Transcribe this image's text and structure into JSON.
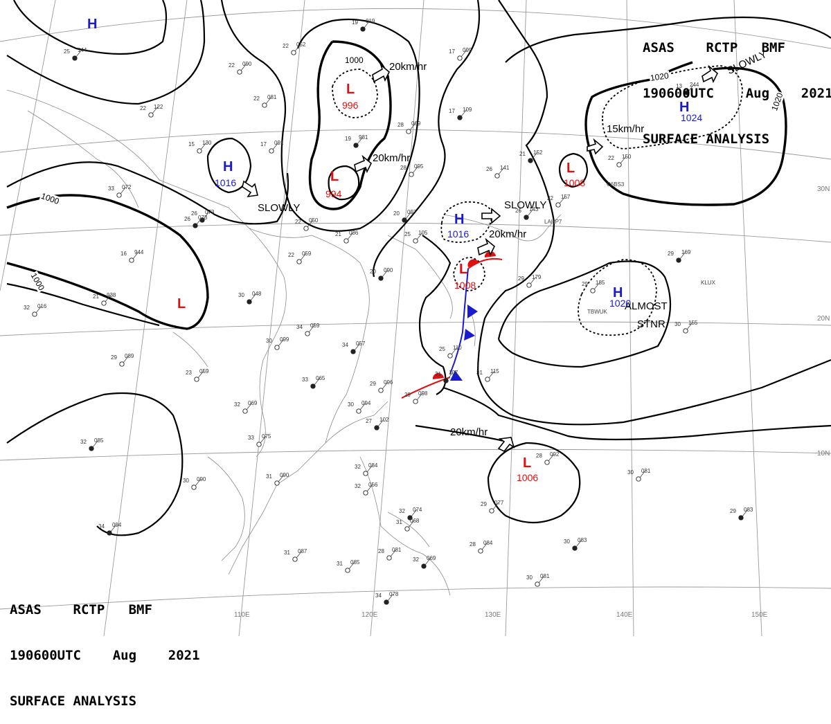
{
  "header": {
    "line1": "ASAS    RCTP   BMF",
    "line2": "190600UTC    Aug    2021",
    "line3": "SURFACE ANALYSIS"
  },
  "lat_labels": [
    "30N",
    "20N",
    "10N"
  ],
  "lon_labels": [
    "110E",
    "120E",
    "130E",
    "140E",
    "150E"
  ],
  "isobar_labels": [
    "1000",
    "1000",
    "1000",
    "1020",
    "1020"
  ],
  "systems": [
    {
      "type": "H",
      "pressure": "",
      "color": "#1a1ad0"
    },
    {
      "type": "L",
      "pressure": "996",
      "color": "#e01010"
    },
    {
      "type": "L",
      "pressure": "994",
      "color": "#e01010"
    },
    {
      "type": "H",
      "pressure": "1016",
      "color": "#1a1ad0"
    },
    {
      "type": "L",
      "pressure": "",
      "color": "#e01010"
    },
    {
      "type": "H",
      "pressure": "1016",
      "color": "#1a1ad0"
    },
    {
      "type": "L",
      "pressure": "1008",
      "color": "#e01010"
    },
    {
      "type": "L",
      "pressure": "1008",
      "color": "#e01010"
    },
    {
      "type": "H",
      "pressure": "1024",
      "color": "#1a1ad0"
    },
    {
      "type": "H",
      "pressure": "1020",
      "color": "#1a1ad0"
    },
    {
      "type": "L",
      "pressure": "1006",
      "color": "#e01010"
    }
  ],
  "motion_labels": [
    "20km/hr",
    "20km/hr",
    "SLOWLY",
    "SLOWLY",
    "20km/hr",
    "15km/hr",
    "SLOWLY",
    "ALMOST",
    "STNR",
    "20km/hr"
  ],
  "stations": [
    {
      "temp": "25",
      "press": "144"
    },
    {
      "temp": "22",
      "press": "090"
    },
    {
      "temp": "22",
      "press": "052"
    },
    {
      "temp": "19",
      "press": "019"
    },
    {
      "temp": "22",
      "press": "081"
    },
    {
      "temp": "22",
      "press": "122"
    },
    {
      "temp": "26",
      "press": "073"
    },
    {
      "temp": "15",
      "press": "130"
    },
    {
      "temp": "17",
      "press": "091"
    },
    {
      "temp": "19",
      "press": "981"
    },
    {
      "temp": "28",
      "press": "069"
    },
    {
      "temp": "17",
      "press": "099"
    },
    {
      "temp": "17",
      "press": "109"
    },
    {
      "temp": "28",
      "press": "095"
    },
    {
      "temp": "33",
      "press": "072"
    },
    {
      "temp": "26",
      "press": "073"
    },
    {
      "temp": "22",
      "press": "050"
    },
    {
      "temp": "21",
      "press": "086"
    },
    {
      "temp": "20",
      "press": "097"
    },
    {
      "temp": "16",
      "press": "944"
    },
    {
      "temp": "22",
      "press": "059"
    },
    {
      "temp": "20",
      "press": "090"
    },
    {
      "temp": "21",
      "press": "938"
    },
    {
      "temp": "32",
      "press": "016"
    },
    {
      "temp": "30",
      "press": "048"
    },
    {
      "temp": "34",
      "press": "059"
    },
    {
      "temp": "30",
      "press": "099"
    },
    {
      "temp": "34",
      "press": "057"
    },
    {
      "temp": "29",
      "press": "089"
    },
    {
      "temp": "23",
      "press": "059"
    },
    {
      "temp": "33",
      "press": "065"
    },
    {
      "temp": "29",
      "press": "096"
    },
    {
      "temp": "30",
      "press": "094"
    },
    {
      "temp": "27",
      "press": "102"
    },
    {
      "temp": "32",
      "press": "069"
    },
    {
      "temp": "33",
      "press": "075"
    },
    {
      "temp": "32",
      "press": "085"
    },
    {
      "temp": "30",
      "press": "090"
    },
    {
      "temp": "31",
      "press": "090"
    },
    {
      "temp": "34",
      "press": "094"
    },
    {
      "temp": "31",
      "press": "087"
    },
    {
      "temp": "31",
      "press": "085"
    },
    {
      "temp": "34",
      "press": "078"
    },
    {
      "temp": "32",
      "press": "084"
    },
    {
      "temp": "32",
      "press": "056"
    },
    {
      "temp": "32",
      "press": "074"
    },
    {
      "temp": "31",
      "press": "068"
    },
    {
      "temp": "28",
      "press": "081"
    },
    {
      "temp": "32",
      "press": "069"
    },
    {
      "temp": "29",
      "press": "077"
    },
    {
      "temp": "28",
      "press": "084"
    },
    {
      "temp": "30",
      "press": "083"
    },
    {
      "temp": "30",
      "press": "081"
    },
    {
      "temp": "30",
      "press": "081"
    },
    {
      "temp": "29",
      "press": "083"
    },
    {
      "temp": "31",
      "press": "115"
    },
    {
      "temp": "25",
      "press": "110"
    },
    {
      "temp": "31",
      "press": "107"
    },
    {
      "temp": "29",
      "press": "098"
    },
    {
      "temp": "29",
      "press": "179"
    },
    {
      "temp": "29",
      "press": "169"
    },
    {
      "temp": "30",
      "press": "155"
    },
    {
      "temp": "29",
      "press": "185"
    },
    {
      "temp": "13",
      "press": "244"
    },
    {
      "temp": "22",
      "press": "157"
    },
    {
      "temp": "22",
      "press": "150"
    },
    {
      "temp": "21",
      "press": "152"
    },
    {
      "temp": "26",
      "press": "141"
    },
    {
      "temp": "25",
      "press": "105"
    },
    {
      "temp": "26",
      "press": "143"
    },
    {
      "temp": "28",
      "press": "092"
    }
  ],
  "station_ids": [
    "LAHP7",
    "KLUX",
    "TBWUK",
    "C6BS3"
  ]
}
